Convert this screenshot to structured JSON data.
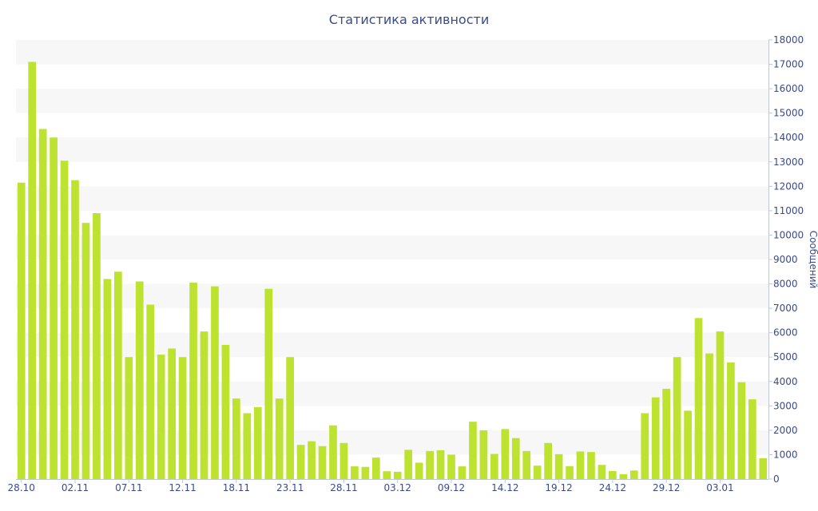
{
  "chart_data": {
    "type": "bar",
    "title": "Статистика активности",
    "xlabel": "",
    "ylabel": "Сообщений",
    "ylim": [
      0,
      18000
    ],
    "yticks": [
      0,
      1000,
      2000,
      3000,
      4000,
      5000,
      6000,
      7000,
      8000,
      9000,
      10000,
      11000,
      12000,
      13000,
      14000,
      15000,
      16000,
      17000,
      18000
    ],
    "y_axis_position": "right",
    "grid": "alternating horizontal bands",
    "bar_color": "#bde22f",
    "band_color": "#f7f7f7",
    "text_color": "#3a4a8c",
    "x_tick_labels": [
      {
        "index": 0,
        "label": "28.10"
      },
      {
        "index": 5,
        "label": "02.11"
      },
      {
        "index": 10,
        "label": "07.11"
      },
      {
        "index": 15,
        "label": "12.11"
      },
      {
        "index": 20,
        "label": "18.11"
      },
      {
        "index": 25,
        "label": "23.11"
      },
      {
        "index": 30,
        "label": "28.11"
      },
      {
        "index": 35,
        "label": "03.12"
      },
      {
        "index": 40,
        "label": "09.12"
      },
      {
        "index": 45,
        "label": "14.12"
      },
      {
        "index": 50,
        "label": "19.12"
      },
      {
        "index": 55,
        "label": "24.12"
      },
      {
        "index": 60,
        "label": "29.12"
      },
      {
        "index": 65,
        "label": "03.01"
      }
    ],
    "values": [
      12150,
      17100,
      14350,
      14000,
      13050,
      12250,
      10500,
      10900,
      8200,
      8500,
      5000,
      8100,
      7150,
      5100,
      5350,
      5000,
      8050,
      6050,
      7900,
      5500,
      3300,
      2700,
      2950,
      7800,
      3300,
      5000,
      1400,
      1550,
      1350,
      2200,
      1480,
      520,
      500,
      880,
      320,
      300,
      1200,
      670,
      1150,
      1180,
      1000,
      520,
      2350,
      2000,
      1030,
      2050,
      1680,
      1150,
      550,
      1480,
      1020,
      530,
      1130,
      1110,
      580,
      330,
      200,
      350,
      2700,
      3350,
      3700,
      5000,
      2800,
      6600,
      5150,
      6050,
      4780,
      3970,
      3270,
      850
    ]
  }
}
